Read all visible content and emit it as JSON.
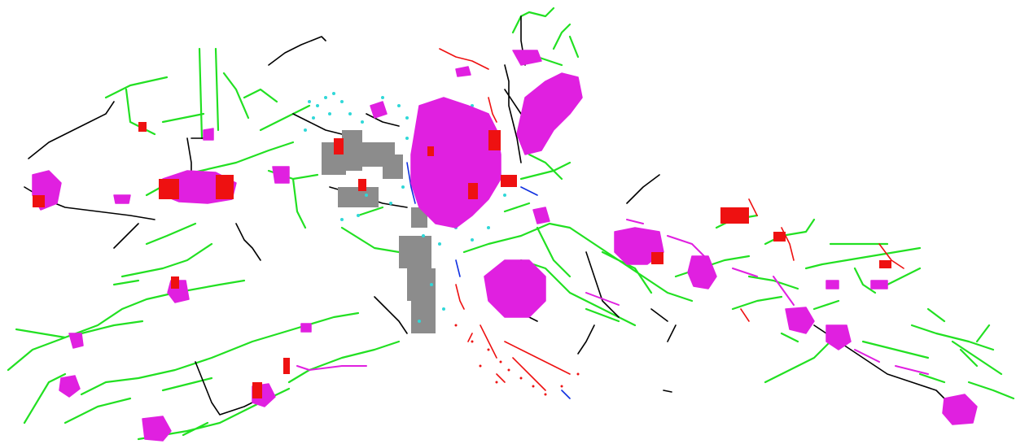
{
  "map": {
    "background": "#ffffff",
    "layers": [
      {
        "id": "green-lines",
        "color": "#22e022"
      },
      {
        "id": "black-lines",
        "color": "#000000"
      },
      {
        "id": "magenta-areas",
        "color": "#e020e0"
      },
      {
        "id": "red-points",
        "color": "#ee1111"
      },
      {
        "id": "cyan-points",
        "color": "#30d8d8"
      },
      {
        "id": "gray-blocks",
        "color": "#8c8c8c"
      },
      {
        "id": "blue-lines",
        "color": "#1030e0"
      }
    ]
  }
}
